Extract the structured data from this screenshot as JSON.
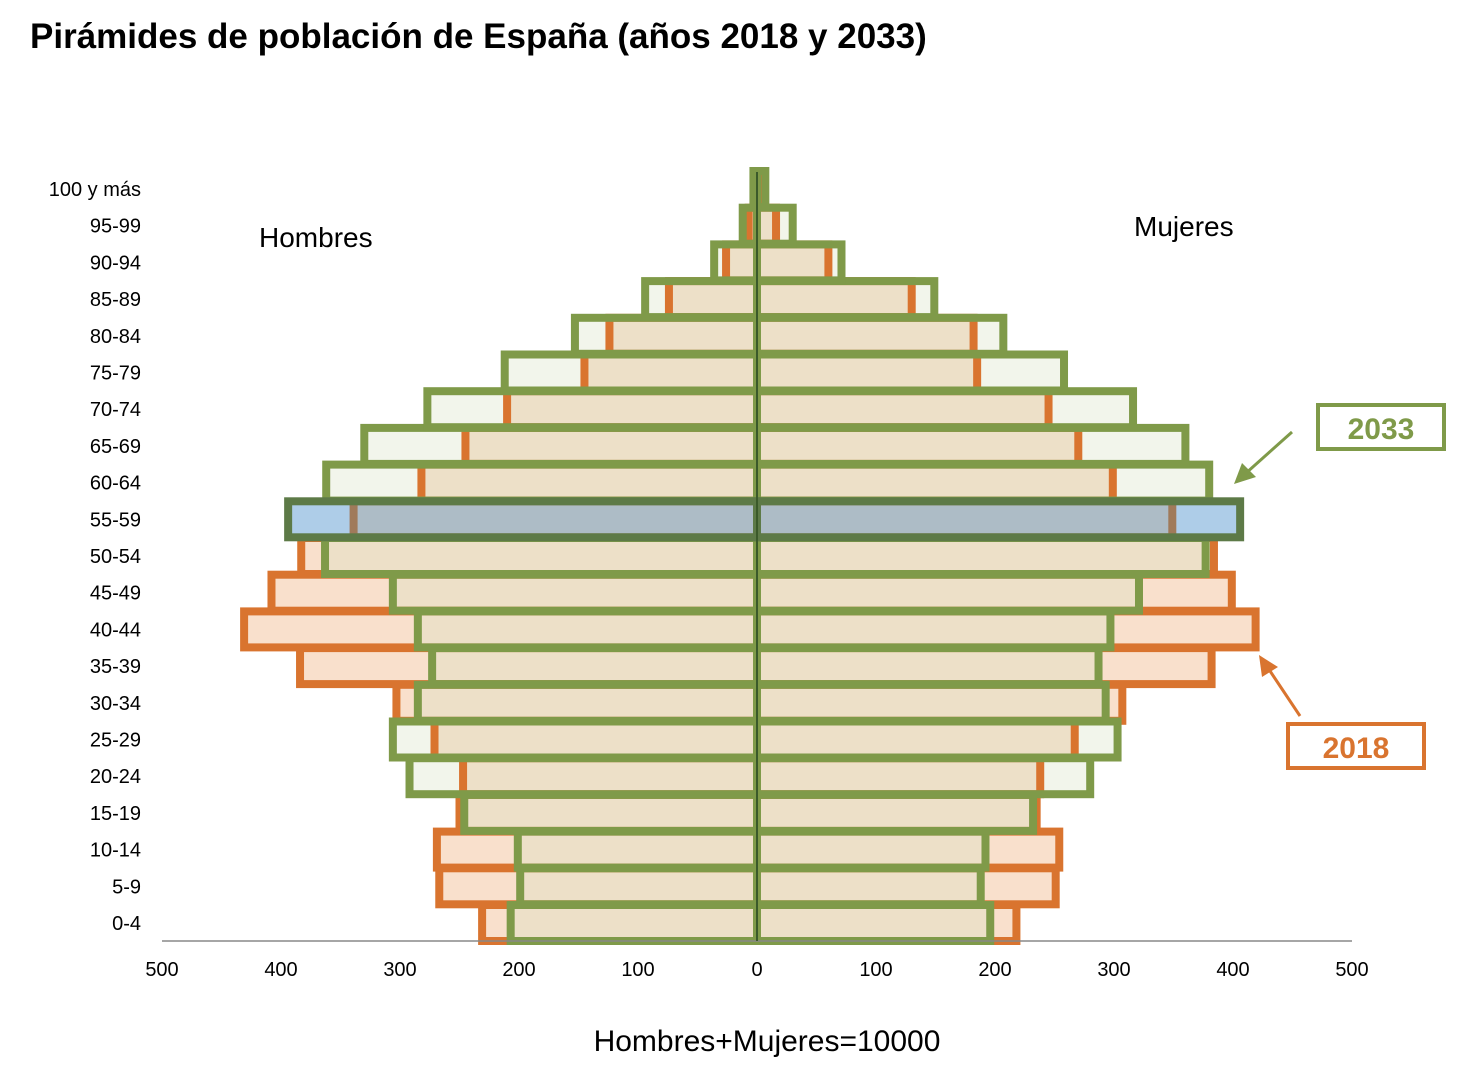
{
  "chart_data": {
    "type": "bar",
    "title": "Pirámides de población de España (años 2018 y 2033)",
    "xlabel": "Hombres+Mujeres=10000",
    "side_labels": {
      "left": "Hombres",
      "right": "Mujeres"
    },
    "xlim": [
      -500,
      500
    ],
    "x_ticks": [
      "500",
      "400",
      "300",
      "200",
      "100",
      "0",
      "100",
      "200",
      "300",
      "400",
      "500"
    ],
    "categories": [
      "0-4",
      "5-9",
      "10-14",
      "15-19",
      "20-24",
      "25-29",
      "30-34",
      "35-39",
      "40-44",
      "45-49",
      "50-54",
      "55-59",
      "60-64",
      "65-69",
      "70-74",
      "75-79",
      "80-84",
      "85-89",
      "90-94",
      "95-99",
      "100 y más"
    ],
    "highlighted_category": "55-59",
    "series": [
      {
        "name": "2018",
        "color": "#d9742f",
        "fill": "#f9e0cc",
        "men": [
          231,
          267,
          269,
          250,
          247,
          271,
          303,
          384,
          431,
          408,
          383,
          339,
          282,
          245,
          210,
          145,
          124,
          74,
          26,
          7,
          2
        ],
        "women": [
          218,
          251,
          254,
          235,
          238,
          267,
          307,
          382,
          419,
          399,
          384,
          349,
          299,
          270,
          245,
          185,
          182,
          130,
          60,
          16,
          3
        ]
      },
      {
        "name": "2033",
        "color": "#7f9a49",
        "fill": "#f2f5eb",
        "men": [
          207,
          199,
          201,
          246,
          292,
          306,
          285,
          273,
          285,
          306,
          363,
          394,
          362,
          330,
          277,
          212,
          153,
          94,
          36,
          12,
          3
        ],
        "women": [
          196,
          188,
          192,
          232,
          280,
          303,
          293,
          287,
          297,
          321,
          377,
          406,
          380,
          360,
          316,
          258,
          207,
          149,
          71,
          30,
          7
        ]
      }
    ],
    "legend": [
      {
        "label": "2033",
        "color": "#7f9a49"
      },
      {
        "label": "2018",
        "color": "#d9742f"
      }
    ]
  }
}
